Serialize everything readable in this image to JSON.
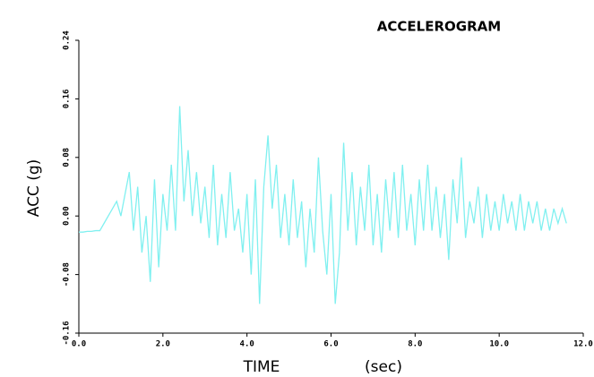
{
  "chart_data": {
    "type": "line",
    "title": "ACCELEROGRAM",
    "ylabel": "ACC (g)",
    "xlabel": "TIME",
    "xlabel_unit": "(sec)",
    "x": [
      0.0,
      0.1,
      0.2,
      0.3,
      0.4,
      0.5,
      0.6,
      0.7,
      0.8,
      0.9,
      1.0,
      1.1,
      1.2,
      1.3,
      1.4,
      1.5,
      1.6,
      1.7,
      1.8,
      1.9,
      2.0,
      2.1,
      2.2,
      2.3,
      2.4,
      2.5,
      2.6,
      2.7,
      2.8,
      2.9,
      3.0,
      3.1,
      3.2,
      3.3,
      3.4,
      3.5,
      3.6,
      3.7,
      3.8,
      3.9,
      4.0,
      4.1,
      4.2,
      4.3,
      4.4,
      4.5,
      4.6,
      4.7,
      4.8,
      4.9,
      5.0,
      5.1,
      5.2,
      5.3,
      5.4,
      5.5,
      5.6,
      5.7,
      5.8,
      5.9,
      6.0,
      6.1,
      6.2,
      6.3,
      6.4,
      6.5,
      6.6,
      6.7,
      6.8,
      6.9,
      7.0,
      7.1,
      7.2,
      7.3,
      7.4,
      7.5,
      7.6,
      7.7,
      7.8,
      7.9,
      8.0,
      8.1,
      8.2,
      8.3,
      8.4,
      8.5,
      8.6,
      8.7,
      8.8,
      8.9,
      9.0,
      9.1,
      9.2,
      9.3,
      9.4,
      9.5,
      9.6,
      9.7,
      9.8,
      9.9,
      10.0,
      10.1,
      10.2,
      10.3,
      10.4,
      10.5,
      10.6,
      10.7,
      10.8,
      10.9,
      11.0,
      11.1,
      11.2,
      11.3,
      11.4,
      11.5,
      11.6
    ],
    "series": [
      {
        "color": "#80f0f0",
        "values": [
          -0.022,
          -0.022,
          -0.021,
          -0.021,
          -0.02,
          -0.02,
          -0.01,
          0.0,
          0.01,
          0.02,
          0.0,
          0.03,
          0.06,
          -0.02,
          0.04,
          -0.05,
          0.0,
          -0.09,
          0.05,
          -0.07,
          0.03,
          -0.02,
          0.07,
          -0.02,
          0.15,
          0.02,
          0.09,
          0.0,
          0.06,
          -0.01,
          0.04,
          -0.03,
          0.07,
          -0.04,
          0.03,
          -0.03,
          0.06,
          -0.02,
          0.01,
          -0.05,
          0.03,
          -0.08,
          0.05,
          -0.12,
          0.04,
          0.11,
          0.01,
          0.07,
          -0.03,
          0.03,
          -0.04,
          0.05,
          -0.03,
          0.02,
          -0.07,
          0.01,
          -0.05,
          0.08,
          -0.02,
          -0.08,
          0.03,
          -0.12,
          -0.05,
          0.1,
          -0.02,
          0.06,
          -0.04,
          0.04,
          -0.02,
          0.07,
          -0.04,
          0.03,
          -0.05,
          0.05,
          -0.02,
          0.06,
          -0.03,
          0.07,
          -0.02,
          0.03,
          -0.04,
          0.05,
          -0.02,
          0.07,
          -0.02,
          0.04,
          -0.03,
          0.03,
          -0.06,
          0.05,
          -0.01,
          0.08,
          -0.03,
          0.02,
          -0.01,
          0.04,
          -0.03,
          0.03,
          -0.02,
          0.02,
          -0.02,
          0.03,
          -0.01,
          0.02,
          -0.02,
          0.03,
          -0.02,
          0.02,
          -0.01,
          0.02,
          -0.02,
          0.01,
          -0.02,
          0.01,
          -0.01,
          0.01,
          -0.01
        ]
      }
    ],
    "xlim": [
      0,
      12
    ],
    "ylim": [
      -0.16,
      0.24
    ],
    "xticks": [
      {
        "value": 0,
        "label": "0.0"
      },
      {
        "value": 2,
        "label": "2.0"
      },
      {
        "value": 4,
        "label": "4.0"
      },
      {
        "value": 6,
        "label": "6.0"
      },
      {
        "value": 8,
        "label": "8.0"
      },
      {
        "value": 10,
        "label": "10.0"
      },
      {
        "value": 12,
        "label": "12.0"
      }
    ],
    "yticks": [
      -0.16,
      -0.08,
      {
        "value": 0,
        "label": "0.00"
      },
      0.08,
      0.16,
      0.24
    ]
  }
}
